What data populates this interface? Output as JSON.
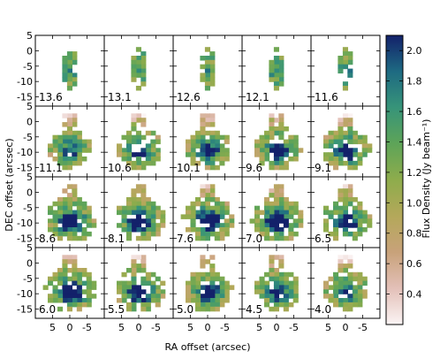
{
  "chart_data": {
    "type": "heatmap",
    "layout": {
      "rows": 4,
      "columns": 5
    },
    "panel_labels": [
      "13.6",
      "13.1",
      "12.6",
      "12.1",
      "11.6",
      "11.1",
      "10.6",
      "10.1",
      "9.6",
      "9.1",
      "8.6",
      "8.1",
      "7.6",
      "7.0",
      "6.5",
      "6.0",
      "5.5",
      "5.0",
      "4.5",
      "4.0"
    ],
    "panel_intensity": [
      0.15,
      0.16,
      0.17,
      0.18,
      0.2,
      0.35,
      0.45,
      0.55,
      0.62,
      0.7,
      0.9,
      0.88,
      0.95,
      0.92,
      0.75,
      1.0,
      0.85,
      0.7,
      0.55,
      0.45
    ],
    "xlabel": "RA offset (arcsec)",
    "ylabel": "DEC offset (arcsec)",
    "x_ticks": [
      "5",
      "0",
      "-5"
    ],
    "x_tick_values": [
      5,
      0,
      -5
    ],
    "y_ticks": [
      "5",
      "0",
      "-5",
      "-10",
      "-15"
    ],
    "y_tick_values": [
      5,
      0,
      -5,
      -10,
      -15
    ],
    "xlim": [
      10,
      -10
    ],
    "ylim": [
      -18,
      5
    ],
    "colorbar": {
      "label": "Flux Density (Jy beam⁻¹)",
      "range": [
        0.2,
        2.1
      ],
      "ticks": [
        "0.4",
        "0.6",
        "0.8",
        "1.0",
        "1.2",
        "1.4",
        "1.6",
        "1.8",
        "2.0"
      ],
      "tick_values": [
        0.4,
        0.6,
        0.8,
        1.0,
        1.2,
        1.4,
        1.6,
        1.8,
        2.0
      ],
      "colors": [
        "#fbf4f4",
        "#e3c0b8",
        "#c8a27a",
        "#b4a85a",
        "#8eac4c",
        "#5ea458",
        "#379479",
        "#1e6a82",
        "#13216a"
      ]
    }
  }
}
